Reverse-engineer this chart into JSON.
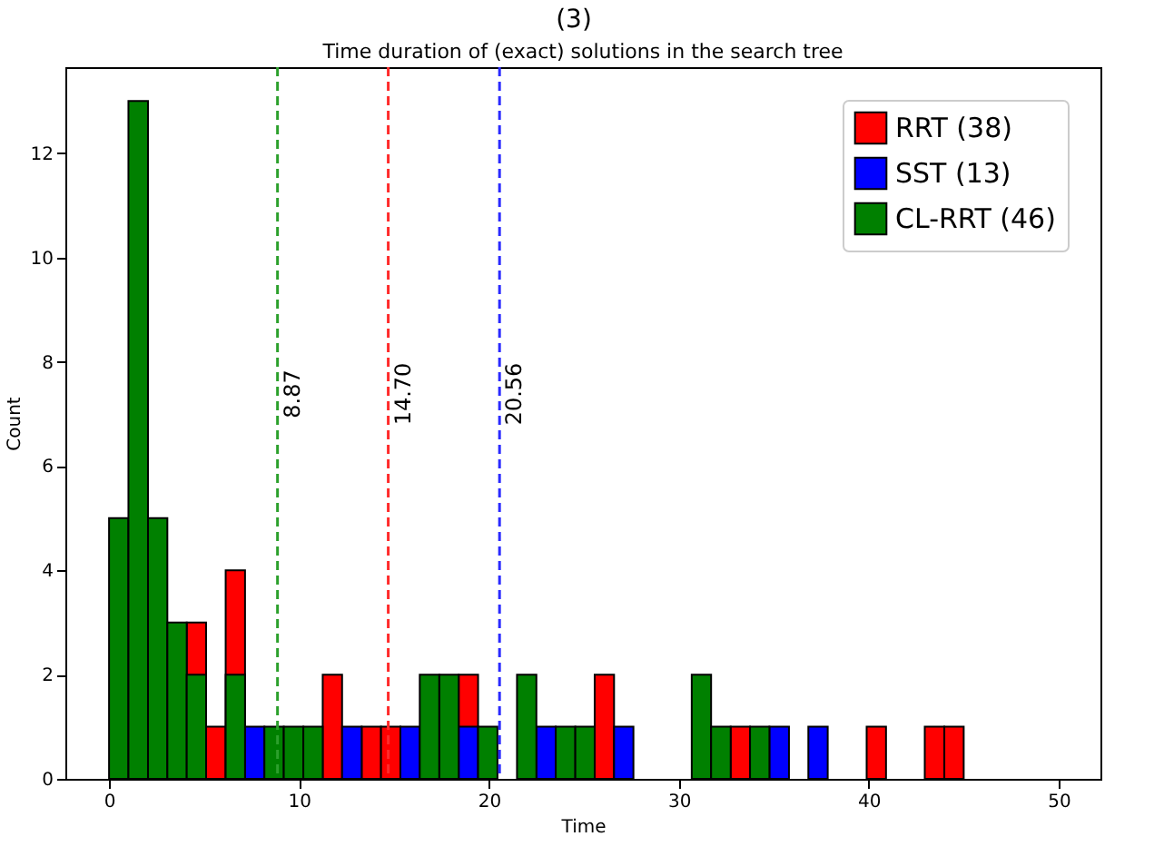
{
  "chart_data": {
    "type": "histogram",
    "title": "Time duration of (exact) solutions in the search tree",
    "xlabel": "Time",
    "ylabel": "Count",
    "annotations": [
      "(3)"
    ],
    "bins": [
      0,
      1.02,
      2.05,
      3.07,
      4.09,
      5.11,
      6.14,
      7.16,
      8.18,
      9.2,
      10.23,
      11.25,
      12.27,
      13.3,
      14.32,
      15.34,
      16.36,
      17.39,
      18.41,
      19.43,
      20.45,
      21.48,
      22.5,
      23.52,
      24.55,
      25.57,
      26.59,
      27.61,
      28.64,
      29.66,
      30.68,
      31.7,
      32.73,
      33.75,
      34.77,
      35.8,
      36.82,
      37.84,
      38.86,
      39.89,
      40.91,
      41.93,
      42.95,
      43.98,
      45
    ],
    "series": [
      {
        "name": "RRT (38)",
        "color": "#ff0000",
        "values": [
          null,
          null,
          null,
          null,
          3,
          1,
          4,
          null,
          null,
          null,
          null,
          2,
          null,
          1,
          1,
          null,
          null,
          null,
          2,
          null,
          0,
          null,
          null,
          null,
          null,
          2,
          null,
          0,
          0,
          0,
          null,
          null,
          1,
          null,
          null,
          0,
          null,
          0,
          0,
          1,
          0,
          0,
          1,
          1
        ]
      },
      {
        "name": "SST (13)",
        "color": "#0000ff",
        "values": [
          null,
          null,
          null,
          null,
          null,
          0,
          null,
          1,
          null,
          null,
          null,
          0,
          1,
          0,
          0,
          1,
          null,
          null,
          1,
          null,
          0,
          null,
          1,
          null,
          null,
          0,
          1,
          0,
          0,
          0,
          null,
          null,
          0,
          null,
          1,
          0,
          1,
          0,
          0,
          0,
          0,
          0,
          0,
          0
        ]
      },
      {
        "name": "CL-RRT (46)",
        "color": "#008000",
        "values": [
          5,
          13,
          5,
          3,
          2,
          0,
          2,
          0,
          1,
          1,
          1,
          0,
          0,
          0,
          0,
          0,
          2,
          2,
          0,
          1,
          0,
          2,
          0,
          1,
          1,
          0,
          0,
          0,
          0,
          0,
          2,
          1,
          0,
          1,
          0,
          0,
          0,
          0,
          0,
          0,
          0,
          0,
          0,
          0
        ]
      }
    ],
    "xlim": [
      -2.3,
      52.2
    ],
    "xticks": [
      0,
      10,
      20,
      30,
      40,
      50
    ],
    "ylim": [
      0,
      13.65
    ],
    "yticks": [
      0,
      2,
      4,
      6,
      8,
      10,
      12
    ],
    "ref_lines": [
      {
        "axis": "x",
        "value": 8.87,
        "label": "8.87",
        "color": "#2ca02c",
        "line_style": "dashed"
      },
      {
        "axis": "x",
        "value": 14.7,
        "label": "14.70",
        "color": "#ff2a2a",
        "line_style": "dashed"
      },
      {
        "axis": "x",
        "value": 20.56,
        "label": "20.56",
        "color": "#2a2aff",
        "line_style": "dashed"
      }
    ],
    "legend": "top right"
  }
}
